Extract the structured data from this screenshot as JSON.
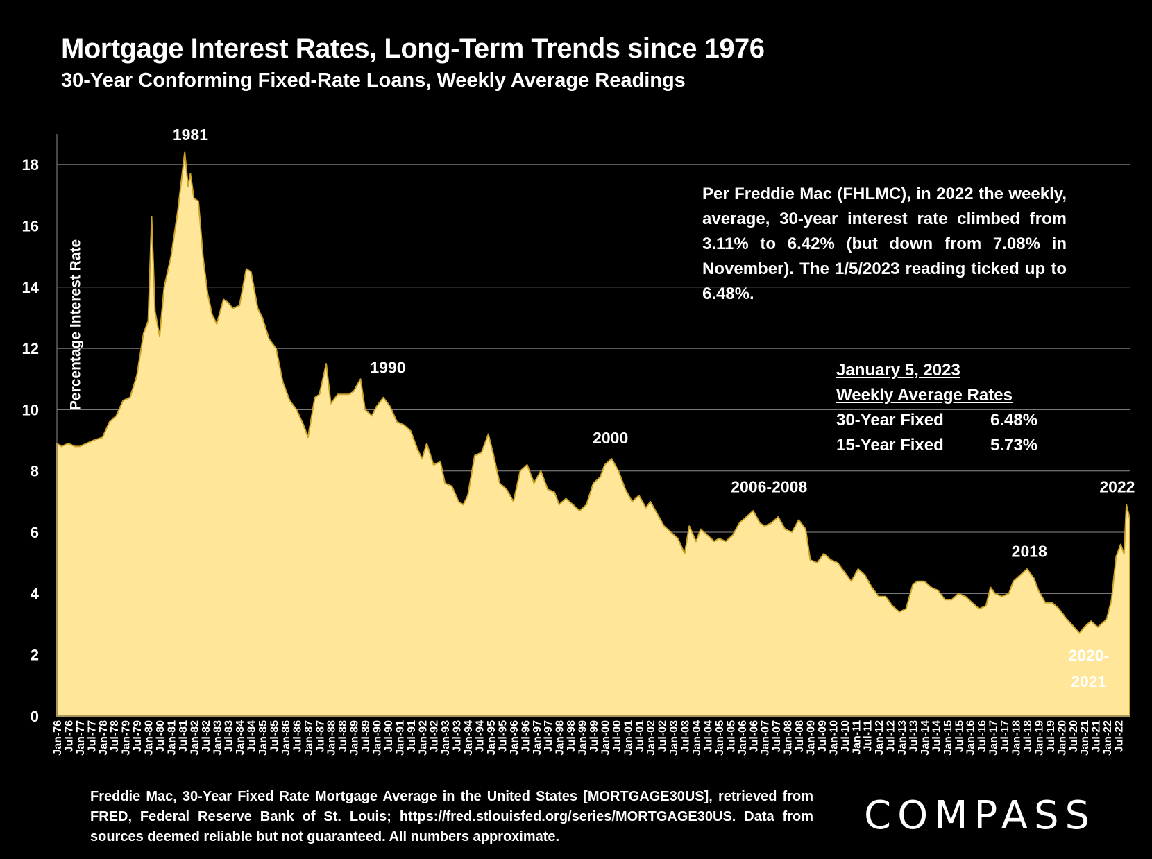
{
  "header": {
    "title": "Mortgage Interest Rates, Long-Term Trends since 1976",
    "subtitle": "30-Year Conforming Fixed-Rate Loans, Weekly Average Readings"
  },
  "note": "Per Freddie Mac (FHLMC), in 2022 the weekly, average, 30-year interest rate climbed from 3.11% to 6.42% (but down from 7.08% in November). The 1/5/2023 reading ticked up to 6.48%.",
  "rates_box": {
    "date": "January 5, 2023",
    "heading": "Weekly Average Rates",
    "rows": [
      {
        "label": "30-Year Fixed",
        "value": "6.48%"
      },
      {
        "label": "15-Year Fixed",
        "value": "5.73%"
      }
    ]
  },
  "source": "Freddie Mac, 30-Year Fixed Rate Mortgage Average in the United States [MORTGAGE30US], retrieved from FRED, Federal Reserve Bank of St. Louis; https://fred.stlouisfed.org/series/MORTGAGE30US. Data from sources deemed reliable but not guaranteed. All numbers approximate.",
  "logo": "COMPASS",
  "colors": {
    "background": "#000000",
    "area_fill": "#FFE699",
    "area_line": "#C9A227",
    "grid": "#8C8C8C",
    "text": "#FFFFFF"
  },
  "chart_data": {
    "type": "area",
    "title": "Mortgage Interest Rates, Long-Term Trends since 1976",
    "ylabel": "Percentage Interest  Rate",
    "xlabel": "",
    "ylim": [
      0,
      19
    ],
    "yticks": [
      0,
      2,
      4,
      6,
      8,
      10,
      12,
      14,
      16,
      18
    ],
    "xlim": [
      1976.0,
      2023.0
    ],
    "grid": true,
    "xtick_labels": [
      "Jan-76",
      "Jul-76",
      "Jan-77",
      "Jul-77",
      "Jan-78",
      "Jul-78",
      "Jan-79",
      "Jul-79",
      "Jan-80",
      "Jul-80",
      "Jan-81",
      "Jul-81",
      "Jan-82",
      "Jul-82",
      "Jan-83",
      "Jul-83",
      "Jan-84",
      "Jul-84",
      "Jan-85",
      "Jul-85",
      "Jan-86",
      "Jul-86",
      "Jan-87",
      "Jul-87",
      "Jan-88",
      "Jul-88",
      "Jan-89",
      "Jul-89",
      "Jan-90",
      "Jul-90",
      "Jan-91",
      "Jul-91",
      "Jan-92",
      "Jul-92",
      "Jan-93",
      "Jul-93",
      "Jan-94",
      "Jul-94",
      "Jan-95",
      "Jul-95",
      "Jan-96",
      "Jul-96",
      "Jan-97",
      "Jul-97",
      "Jan-98",
      "Jul-98",
      "Jan-99",
      "Jul-99",
      "Jan-00",
      "Jul-00",
      "Jan-01",
      "Jul-01",
      "Jan-02",
      "Jul-02",
      "Jan-03",
      "Jul-03",
      "Jan-04",
      "Jul-04",
      "Jan-05",
      "Jul-05",
      "Jan-06",
      "Jul-06",
      "Jan-07",
      "Jul-07",
      "Jan-08",
      "Jul-08",
      "Jan-09",
      "Jul-09",
      "Jan-10",
      "Jul-10",
      "Jan-11",
      "Jul-11",
      "Jan-12",
      "Jul-12",
      "Jan-13",
      "Jul-13",
      "Jan-14",
      "Jul-14",
      "Jan-15",
      "Jul-15",
      "Jan-16",
      "Jul-16",
      "Jan-17",
      "Jul-17",
      "Jan-18",
      "Jul-18",
      "Jan-19",
      "Jul-19",
      "Jan-20",
      "Jul-20",
      "Jan-21",
      "Jul-21",
      "Jan-22",
      "Jul-22"
    ],
    "series": [
      {
        "x": [
          1976.0,
          1976.2,
          1976.5,
          1976.8,
          1977.0,
          1977.3,
          1977.6,
          1978.0,
          1978.3,
          1978.6,
          1978.9,
          1979.2,
          1979.5,
          1979.8,
          1980.0,
          1980.15,
          1980.3,
          1980.5,
          1980.7,
          1981.0,
          1981.3,
          1981.6,
          1981.75,
          1981.85,
          1982.0,
          1982.2,
          1982.4,
          1982.6,
          1982.8,
          1983.0,
          1983.3,
          1983.5,
          1983.7,
          1984.0,
          1984.3,
          1984.5,
          1984.8,
          1985.0,
          1985.3,
          1985.6,
          1985.9,
          1986.2,
          1986.5,
          1986.8,
          1987.0,
          1987.3,
          1987.5,
          1987.8,
          1988.0,
          1988.3,
          1988.5,
          1988.8,
          1989.0,
          1989.3,
          1989.5,
          1989.8,
          1990.0,
          1990.3,
          1990.6,
          1990.9,
          1991.2,
          1991.5,
          1991.8,
          1992.0,
          1992.2,
          1992.5,
          1992.8,
          1993.0,
          1993.3,
          1993.6,
          1993.8,
          1994.0,
          1994.3,
          1994.6,
          1994.9,
          1995.1,
          1995.4,
          1995.7,
          1996.0,
          1996.3,
          1996.6,
          1996.9,
          1997.2,
          1997.5,
          1997.8,
          1998.0,
          1998.3,
          1998.6,
          1998.9,
          1999.2,
          1999.5,
          1999.8,
          2000.0,
          2000.3,
          2000.6,
          2000.9,
          2001.2,
          2001.5,
          2001.8,
          2002.0,
          2002.3,
          2002.6,
          2002.9,
          2003.2,
          2003.5,
          2003.7,
          2004.0,
          2004.2,
          2004.5,
          2004.8,
          2005.0,
          2005.3,
          2005.6,
          2005.9,
          2006.2,
          2006.5,
          2006.8,
          2007.0,
          2007.3,
          2007.6,
          2007.9,
          2008.2,
          2008.5,
          2008.8,
          2009.0,
          2009.3,
          2009.6,
          2009.9,
          2010.2,
          2010.5,
          2010.8,
          2011.1,
          2011.4,
          2011.7,
          2012.0,
          2012.3,
          2012.6,
          2012.9,
          2013.2,
          2013.5,
          2013.7,
          2014.0,
          2014.3,
          2014.6,
          2014.9,
          2015.2,
          2015.5,
          2015.8,
          2016.1,
          2016.4,
          2016.7,
          2016.9,
          2017.1,
          2017.4,
          2017.7,
          2017.9,
          2018.2,
          2018.5,
          2018.8,
          2019.0,
          2019.3,
          2019.6,
          2019.9,
          2020.2,
          2020.5,
          2020.8,
          2021.0,
          2021.3,
          2021.6,
          2021.9,
          2022.0,
          2022.2,
          2022.4,
          2022.6,
          2022.75,
          2022.85,
          2022.95,
          2023.0
        ],
        "values": [
          8.9,
          8.8,
          8.9,
          8.8,
          8.8,
          8.9,
          9.0,
          9.1,
          9.6,
          9.8,
          10.3,
          10.4,
          11.1,
          12.5,
          12.9,
          16.3,
          13.2,
          12.4,
          14.0,
          15.0,
          16.5,
          18.4,
          17.3,
          17.7,
          16.9,
          16.8,
          15.0,
          13.8,
          13.1,
          12.8,
          13.6,
          13.5,
          13.3,
          13.4,
          14.6,
          14.5,
          13.3,
          13.0,
          12.3,
          12.0,
          10.9,
          10.3,
          10.0,
          9.5,
          9.1,
          10.4,
          10.5,
          11.5,
          10.2,
          10.5,
          10.5,
          10.5,
          10.6,
          11.0,
          10.0,
          9.8,
          10.1,
          10.4,
          10.1,
          9.6,
          9.5,
          9.3,
          8.7,
          8.4,
          8.9,
          8.2,
          8.3,
          7.6,
          7.5,
          7.0,
          6.9,
          7.2,
          8.5,
          8.6,
          9.2,
          8.6,
          7.6,
          7.4,
          7.0,
          8.0,
          8.2,
          7.6,
          8.0,
          7.4,
          7.3,
          6.9,
          7.1,
          6.9,
          6.7,
          6.9,
          7.6,
          7.8,
          8.2,
          8.4,
          8.0,
          7.4,
          7.0,
          7.2,
          6.8,
          7.0,
          6.6,
          6.2,
          6.0,
          5.8,
          5.3,
          6.2,
          5.7,
          6.1,
          5.9,
          5.7,
          5.8,
          5.7,
          5.9,
          6.3,
          6.5,
          6.7,
          6.3,
          6.2,
          6.3,
          6.5,
          6.1,
          6.0,
          6.4,
          6.1,
          5.1,
          5.0,
          5.3,
          5.1,
          5.0,
          4.7,
          4.4,
          4.8,
          4.6,
          4.2,
          3.9,
          3.9,
          3.6,
          3.4,
          3.5,
          4.3,
          4.4,
          4.4,
          4.2,
          4.1,
          3.8,
          3.8,
          4.0,
          3.9,
          3.7,
          3.5,
          3.6,
          4.2,
          4.0,
          3.9,
          4.0,
          4.4,
          4.6,
          4.8,
          4.5,
          4.1,
          3.7,
          3.7,
          3.5,
          3.2,
          2.95,
          2.7,
          2.9,
          3.1,
          2.9,
          3.1,
          3.2,
          3.8,
          5.2,
          5.6,
          5.3,
          6.9,
          6.6,
          6.42
        ]
      }
    ],
    "annotations": [
      {
        "text": "1981",
        "x": 1981.85,
        "y": 18.8
      },
      {
        "text": "1990",
        "x": 1990.5,
        "y": 11.2
      },
      {
        "text": "2000",
        "x": 2000.25,
        "y": 8.9
      },
      {
        "text": "2006-2008",
        "x": 2007.2,
        "y": 7.3
      },
      {
        "text": "2018",
        "x": 2018.6,
        "y": 5.2
      },
      {
        "text": "2020-",
        "x": 2021.2,
        "y": 1.8
      },
      {
        "text": "2021",
        "x": 2021.2,
        "y": 0.95
      },
      {
        "text": "2022",
        "x": 2022.45,
        "y": 7.3
      }
    ]
  }
}
